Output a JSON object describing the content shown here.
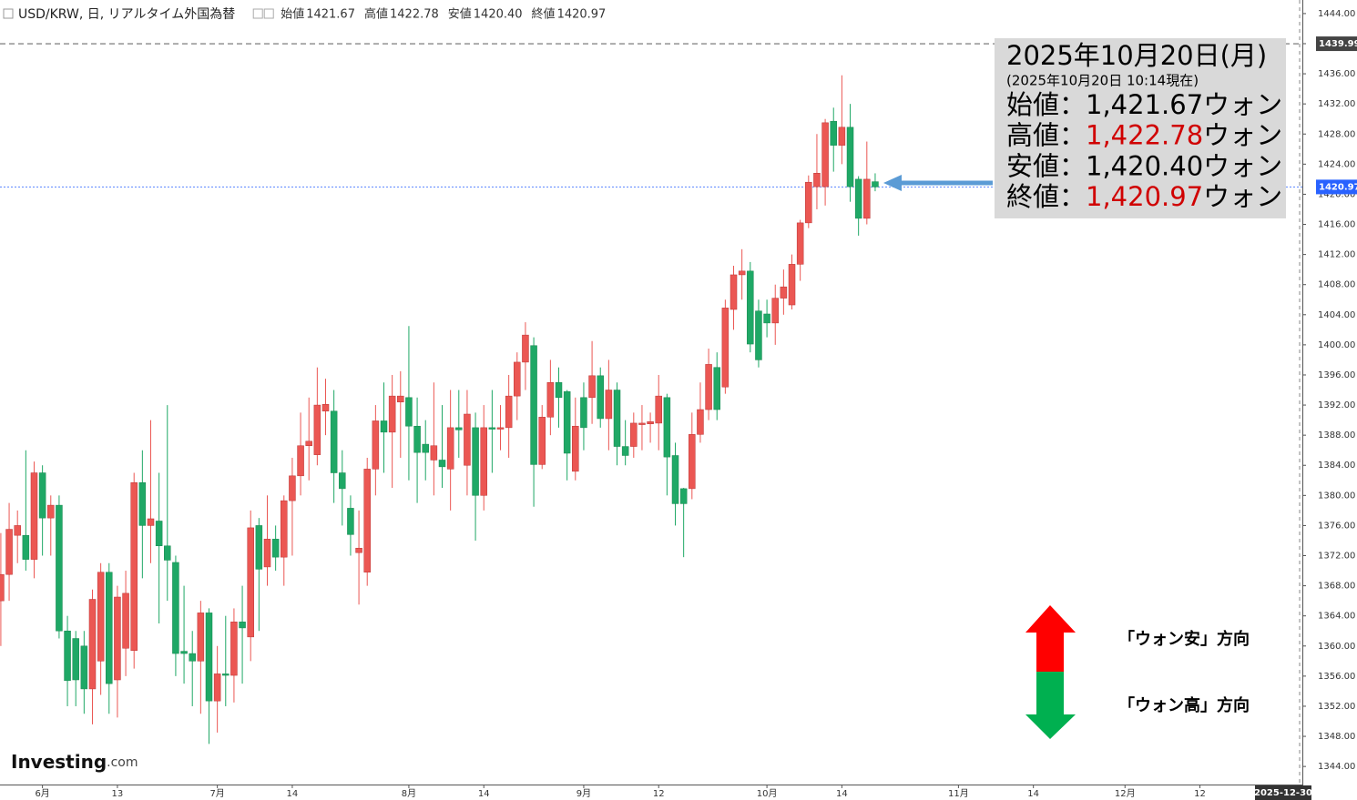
{
  "chart_data": {
    "type": "candlestick",
    "header": {
      "symbol": "USD/KRW, 日, リアルタイム外国為替",
      "items": [
        {
          "label": "始値",
          "value": 1421.67
        },
        {
          "label": "高値",
          "value": 1422.78
        },
        {
          "label": "安値",
          "value": {
            "value": 1420.4,
            "label": "1420.40"
          }
        },
        {
          "label": "終値",
          "value": 1420.97
        }
      ]
    },
    "up_color": "#eb5753",
    "down_color": "#1fa866",
    "open": [
      1366,
      1369.5,
      1374.7,
      1374.7,
      1371.5,
      1383,
      1377,
      1378.7,
      1362,
      1361,
      1360,
      1354.3,
      1358,
      1369.8,
      1355.5,
      1359.7,
      1359.4,
      1381.7,
      1376,
      1376.6,
      1373.3,
      1371.1,
      1359.3,
      1359,
      1358,
      1364.4,
      1352.7,
      1356.3,
      1356.1,
      1363.2,
      1361.2,
      1376,
      1370.5,
      1374.2,
      1371.8,
      1379.3,
      1382.6,
      1386.6,
      1385.4,
      1391.2,
      1391.2,
      1383,
      1378.3,
      1372.4,
      1369.8,
      1383.5,
      1389.9,
      1388.4,
      1392.4,
      1393,
      1389.2,
      1386.8,
      1384.7,
      1384.7,
      1383.5,
      1389,
      1384,
      1389,
      1380,
      1389,
      1388.8,
      1389,
      1393.2,
      1397.7,
      1399.9,
      1384.1,
      1390.4,
      1395,
      1393.8,
      1383.2,
      1393,
      1393,
      1395.9,
      1390.2,
      1394,
      1386.5,
      1386.5,
      1389.4,
      1389.5,
      1389.6,
      1393,
      1385.3,
      1380.9,
      1380.9,
      1388.1,
      1391.4,
      1397,
      1394.4,
      1404.7,
      1409.3,
      1409.8,
      1404.5,
      1404.1,
      1402.9,
      1406.2,
      1405.3,
      1410.7,
      1416.2,
      1421,
      1421,
      1429.7,
      1426.5,
      1428.9,
      1422,
      1416.8,
      1421.67
    ],
    "high": [
      1375,
      1379,
      1378,
      1386,
      1384.5,
      1384,
      1380,
      1380,
      1364,
      1362,
      1362,
      1367.5,
      1371,
      1371,
      1368,
      1370,
      1383,
      1386,
      1390,
      1383,
      1392,
      1372,
      1368,
      1362,
      1366,
      1365,
      1360,
      1364,
      1365,
      1368,
      1378,
      1377,
      1380,
      1376,
      1380,
      1385,
      1391,
      1393,
      1397,
      1395.5,
      1394,
      1386,
      1380,
      1378,
      1385,
      1392,
      1395,
      1396,
      1396.5,
      1402.5,
      1393,
      1390,
      1395,
      1392,
      1394,
      1394,
      1394,
      1391,
      1392,
      1394,
      1392,
      1396,
      1399,
      1403,
      1401,
      1392,
      1398,
      1397,
      1394,
      1393,
      1395,
      1400.5,
      1397,
      1398,
      1395,
      1390,
      1391,
      1392,
      1391,
      1396,
      1393.5,
      1387,
      1381,
      1391,
      1395,
      1399.5,
      1399,
      1406,
      1410.5,
      1412.7,
      1411,
      1406,
      1406,
      1408,
      1410,
      1412,
      1416.6,
      1422.5,
      1428,
      1430,
      1431.5,
      1435.8,
      1432,
      1422.4,
      1427,
      1422.78
    ],
    "low": [
      1360,
      1366,
      1371,
      1370,
      1369,
      1372,
      1372,
      1361,
      1352,
      1352,
      1351,
      1349.6,
      1353.5,
      1351,
      1350.5,
      1356,
      1357,
      1369,
      1371,
      1363,
      1366,
      1356,
      1355,
      1352,
      1351,
      1347,
      1348.5,
      1352,
      1352.5,
      1355,
      1358,
      1362,
      1368,
      1370,
      1368,
      1372,
      1380,
      1382,
      1384,
      1388,
      1379,
      1376,
      1372,
      1365.5,
      1368,
      1380,
      1383,
      1381,
      1385,
      1382,
      1379,
      1382,
      1380,
      1381,
      1378,
      1385,
      1380,
      1374,
      1378,
      1383,
      1386,
      1385,
      1390,
      1394,
      1378.5,
      1383.5,
      1388,
      1389,
      1382,
      1382,
      1386,
      1389.5,
      1389,
      1386,
      1384,
      1384,
      1385,
      1386,
      1387,
      1386,
      1380,
      1376,
      1371.8,
      1379.5,
      1387,
      1390,
      1390,
      1393.5,
      1402,
      1406,
      1399,
      1397,
      1401,
      1400,
      1404,
      1404.7,
      1408.5,
      1415.5,
      1418,
      1418.5,
      1423,
      1424,
      1419,
      1414.5,
      1416,
      1420.4
    ],
    "close": [
      1369.5,
      1375.5,
      1376,
      1371.5,
      1383,
      1377,
      1378.7,
      1362,
      1355.4,
      1355.5,
      1354.3,
      1366.2,
      1369.8,
      1355,
      1366.5,
      1367,
      1381.7,
      1376,
      1376.9,
      1373.3,
      1371.4,
      1359,
      1359,
      1358,
      1364.4,
      1352.7,
      1356.3,
      1356.1,
      1363.2,
      1362.4,
      1375.7,
      1370.2,
      1374.2,
      1371.8,
      1379.3,
      1382.6,
      1386.6,
      1387.2,
      1392,
      1392.1,
      1383,
      1380.9,
      1374.8,
      1373,
      1383.5,
      1389.9,
      1388.4,
      1393.2,
      1393.2,
      1389.2,
      1385.7,
      1385.7,
      1386.6,
      1383.8,
      1389,
      1388.7,
      1390.8,
      1380,
      1389,
      1388.8,
      1389,
      1393.2,
      1397.7,
      1401.3,
      1384.1,
      1390.4,
      1395,
      1393,
      1385.6,
      1389.2,
      1389,
      1395.9,
      1390.2,
      1394,
      1386.5,
      1385.3,
      1389.6,
      1389.6,
      1389.8,
      1393.2,
      1385.1,
      1378.9,
      1378.9,
      1388.1,
      1391.4,
      1397.4,
      1391.4,
      1404.9,
      1409.3,
      1409.8,
      1400.1,
      1398,
      1402.9,
      1406.2,
      1407.7,
      1410.7,
      1416.2,
      1421.6,
      1422.8,
      1429.5,
      1426.5,
      1428.9,
      1421,
      1416.8,
      1422,
      1420.97
    ],
    "ylim": [
      1341.6,
      1445.8
    ],
    "yticks": [
      {
        "value": 1344,
        "label": "1344.00"
      },
      {
        "value": 1348,
        "label": "1348.00"
      },
      {
        "value": 1352,
        "label": "1352.00"
      },
      {
        "value": 1356,
        "label": "1356.00"
      },
      {
        "value": 1360,
        "label": "1360.00"
      },
      {
        "value": 1364,
        "label": "1364.00"
      },
      {
        "value": 1368,
        "label": "1368.00"
      },
      {
        "value": 1372,
        "label": "1372.00"
      },
      {
        "value": 1376,
        "label": "1376.00"
      },
      {
        "value": 1380,
        "label": "1380.00"
      },
      {
        "value": 1384,
        "label": "1384.00"
      },
      {
        "value": 1388,
        "label": "1388.00"
      },
      {
        "value": 1392,
        "label": "1392.00"
      },
      {
        "value": 1396,
        "label": "1396.00"
      },
      {
        "value": 1400,
        "label": "1400.00"
      },
      {
        "value": 1404,
        "label": "1404.00"
      },
      {
        "value": 1408,
        "label": "1408.00"
      },
      {
        "value": 1412,
        "label": "1412.00"
      },
      {
        "value": 1416,
        "label": "1416.00"
      },
      {
        "value": 1420,
        "label": "1420.00"
      },
      {
        "value": 1424,
        "label": "1424.00"
      },
      {
        "value": 1428,
        "label": "1428.00"
      },
      {
        "value": 1432,
        "label": "1432.00"
      },
      {
        "value": 1436,
        "label": "1436.00"
      },
      {
        "value": 1440,
        "label": "1440.00"
      },
      {
        "value": 1444,
        "label": "1444.00"
      }
    ],
    "xlim": [
      -0.1,
      156.3
    ],
    "xticks": [
      {
        "value": 5,
        "label": "6月"
      },
      {
        "value": 14,
        "label": "13"
      },
      {
        "value": 26,
        "label": "7月"
      },
      {
        "value": 35,
        "label": "14"
      },
      {
        "value": 49,
        "label": "8月"
      },
      {
        "value": 58,
        "label": "14"
      },
      {
        "value": 70,
        "label": "9月"
      },
      {
        "value": 79,
        "label": "12"
      },
      {
        "value": 92,
        "label": "10月"
      },
      {
        "value": 101,
        "label": "14"
      },
      {
        "value": 115,
        "label": "11月"
      },
      {
        "value": 124,
        "label": "14"
      },
      {
        "value": 135,
        "label": "12月"
      },
      {
        "value": 144,
        "label": "12"
      }
    ],
    "cursor_date": "2025-12-30",
    "price_lines": [
      {
        "value": 1439.99,
        "color": "#444444"
      },
      {
        "value": 1420.97,
        "color": "#2962ff"
      }
    ],
    "info_box": {
      "title": "2025年10月20日(月)",
      "subtitle": "(2025年10月20日 10:14現在)",
      "rows": [
        {
          "label": "始値：",
          "value": {
            "value": 1421.67,
            "label": "1,421.67"
          },
          "unit": "ウォン",
          "color": "#000000"
        },
        {
          "label": "高値：",
          "value": {
            "value": 1422.78,
            "label": "1,422.78"
          },
          "unit": "ウォン",
          "color": "#d00000"
        },
        {
          "label": "安値：",
          "value": {
            "value": 1420.4,
            "label": "1,420.40"
          },
          "unit": "ウォン",
          "color": "#000000"
        },
        {
          "label": "終値：",
          "value": {
            "value": 1420.97,
            "label": "1,420.97"
          },
          "unit": "ウォン",
          "color": "#d00000"
        }
      ]
    },
    "annotations": [
      "「ウォン安」方向",
      "「ウォン高」方向"
    ],
    "logo": [
      "Investing",
      ".com"
    ]
  }
}
